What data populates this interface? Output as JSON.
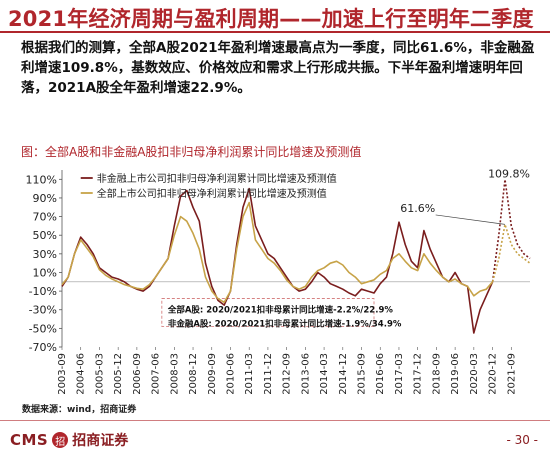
{
  "title": "2021年经济周期与盈利周期——加速上行至明年二季度",
  "paragraph": "根据我们的测算，全部A股2021年盈利增速最高点为一季度，同比61.6%，非金融盈利增速109.8%，基数效应、价格效应和需求上行形成共振。下半年盈利增速明年回落，2021A股全年盈利增速22.9%。",
  "figure_caption": "图：全部A股和非金融A股扣非归母净利润累计同比增速及预测值",
  "source": "数据来源：wind，招商证券",
  "footer": {
    "logo_text": "CMS",
    "logo_mark": "招",
    "logo_cn": "招商证券",
    "page": "- 30 -"
  },
  "colors": {
    "accent": "#b0262c",
    "series_nonfin": "#7a1d1d",
    "series_all": "#c7a348"
  },
  "chart_data": {
    "type": "line",
    "ylim": [
      -70,
      120
    ],
    "yticks": [
      "110%",
      "90%",
      "70%",
      "50%",
      "30%",
      "10%",
      "-10%",
      "-30%",
      "-50%",
      "-70%"
    ],
    "ytick_values": [
      110,
      90,
      70,
      50,
      30,
      10,
      -10,
      -30,
      -50,
      -70
    ],
    "xticks": [
      "2003-09",
      "2004-06",
      "2005-03",
      "2005-12",
      "2006-09",
      "2007-06",
      "2008-03",
      "2008-12",
      "2009-09",
      "2010-06",
      "2011-03",
      "2011-12",
      "2012-09",
      "2013-06",
      "2014-03",
      "2014-12",
      "2015-09",
      "2016-06",
      "2017-03",
      "2017-12",
      "2018-09",
      "2019-06",
      "2020-03",
      "2020-12",
      "2021-09"
    ],
    "xtick_index": [
      0,
      3,
      6,
      9,
      12,
      15,
      18,
      21,
      24,
      27,
      30,
      33,
      36,
      39,
      42,
      45,
      48,
      51,
      54,
      57,
      60,
      63,
      66,
      69,
      72
    ],
    "series": [
      {
        "name": "非金融上市公司扣非归母净利润累计同比增速及预测值",
        "values": [
          -5,
          5,
          30,
          48,
          40,
          30,
          15,
          10,
          5,
          3,
          0,
          -5,
          -8,
          -10,
          -5,
          5,
          15,
          25,
          60,
          92,
          98,
          80,
          65,
          20,
          -5,
          -20,
          -25,
          -10,
          40,
          80,
          100,
          60,
          45,
          30,
          25,
          15,
          5,
          -5,
          -10,
          -8,
          0,
          10,
          5,
          -2,
          -5,
          -8,
          -12,
          -15,
          -8,
          -10,
          -12,
          -2,
          5,
          30,
          64,
          40,
          22,
          15,
          55,
          35,
          20,
          5,
          0,
          10,
          -2,
          -5,
          -55,
          -30,
          -15,
          0,
          50,
          109.8,
          60,
          40,
          30,
          25
        ]
      },
      {
        "name": "全部上市公司扣非归母净利润累计同比增速及预测值",
        "values": [
          -3,
          5,
          30,
          45,
          36,
          27,
          13,
          7,
          3,
          0,
          -3,
          -5,
          -7,
          -8,
          -3,
          5,
          15,
          25,
          50,
          70,
          65,
          52,
          35,
          5,
          -10,
          -18,
          -22,
          -10,
          35,
          70,
          85,
          45,
          35,
          25,
          20,
          12,
          2,
          -5,
          -8,
          -5,
          5,
          12,
          15,
          20,
          22,
          18,
          10,
          5,
          -2,
          0,
          2,
          8,
          12,
          25,
          30,
          22,
          15,
          12,
          30,
          20,
          12,
          5,
          0,
          3,
          -2,
          -5,
          -15,
          -10,
          -8,
          0,
          25,
          61.6,
          40,
          30,
          25,
          20
        ]
      }
    ],
    "solid_until_index": 69,
    "annotations": [
      {
        "label": "109.8%",
        "index": 71,
        "value": 109.8,
        "series": 0
      },
      {
        "label": "61.6%",
        "index": 71,
        "value": 61.6,
        "series": 1
      }
    ],
    "box_lines": [
      "全部A股:   2020/2021扣非母累计同比增速-2.2%/22.9%",
      "非金融A股: 2020/2021扣非母累计同比增速-1.9%/34.9%"
    ],
    "legend_position": "top-left"
  }
}
